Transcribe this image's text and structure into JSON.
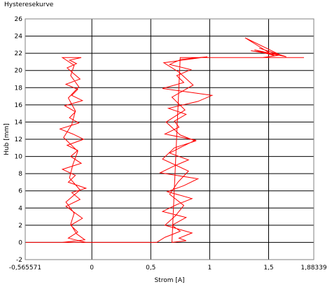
{
  "window": {
    "title": "Hysteresekurve"
  },
  "chart_data": {
    "type": "line",
    "title": "Hysteresekurve",
    "xlabel": "Strom [A]",
    "ylabel": "Hub [mm]",
    "xlim": [
      -0.565571,
      1.88339
    ],
    "ylim": [
      -2,
      26
    ],
    "xticks": [
      -0.565571,
      0,
      0.5,
      1,
      1.5,
      1.88339
    ],
    "xtick_labels": [
      "-0,565571",
      "0",
      "0,5",
      "1",
      "1,5",
      "1,88339"
    ],
    "yticks": [
      -2,
      0,
      2,
      4,
      6,
      8,
      10,
      12,
      14,
      16,
      18,
      20,
      22,
      24,
      26
    ],
    "grid": true,
    "line_color": "#ff0000",
    "series": [
      {
        "x": [
          -0.56,
          -0.05,
          -0.2,
          -0.12,
          -0.18,
          -0.08,
          -0.15,
          -0.22,
          -0.1,
          -0.17,
          -0.05,
          -0.2,
          -0.14,
          -0.25,
          -0.09,
          -0.18,
          -0.12,
          -0.21,
          -0.07,
          -0.16,
          -0.27,
          -0.11,
          -0.19,
          -0.14,
          -0.23,
          -0.08,
          -0.17,
          -0.12,
          -0.22,
          -0.1,
          -0.16,
          -0.21,
          -0.13,
          -0.19,
          -0.09,
          -0.25,
          -0.15,
          -0.18,
          -0.11,
          -0.2,
          -0.14,
          -0.17,
          -0.24,
          -0.12,
          -0.16,
          -0.19,
          -0.1,
          -0.22,
          -0.15,
          -0.18,
          -0.13,
          -0.06,
          -0.25,
          0.4,
          0.55,
          0.62,
          0.75,
          0.68,
          0.8,
          0.6,
          0.72,
          0.85,
          0.64,
          0.78,
          0.9,
          0.58,
          0.7,
          0.82,
          0.66,
          0.76,
          0.88,
          0.62,
          0.74,
          0.7,
          0.8,
          0.65,
          0.9,
          1.02,
          0.6,
          0.78,
          0.72,
          0.84,
          0.66,
          0.76,
          0.98,
          0.61,
          0.74,
          0.86,
          0.68,
          0.79,
          0.63,
          0.75,
          0.88,
          0.7,
          0.6,
          0.82,
          0.73,
          0.66,
          0.78,
          0.71,
          0.62,
          0.85,
          0.74,
          0.8,
          0.68,
          0.75,
          1.2,
          1.8,
          1.45,
          1.6,
          1.3,
          1.5,
          1.55,
          1.38,
          1.65,
          1.42,
          1.58,
          1.35,
          1.62
        ],
        "y": [
          0,
          0,
          0.5,
          1.2,
          2,
          2.8,
          3.5,
          4.2,
          5,
          5.8,
          6.3,
          7,
          7.8,
          8.5,
          9.2,
          10,
          10.7,
          11.3,
          12,
          12.6,
          13.2,
          13.9,
          14.5,
          15.2,
          15.9,
          16.5,
          17.1,
          17.8,
          18.4,
          19,
          19.7,
          20.3,
          20.8,
          21.2,
          21.5,
          21.5,
          20.6,
          19.4,
          18.1,
          16.8,
          15.3,
          13.7,
          12.2,
          10.6,
          9.1,
          7.5,
          6.1,
          4.7,
          3.4,
          2.1,
          1,
          0.3,
          0,
          0,
          0,
          0.6,
          1.3,
          2,
          2.9,
          3.6,
          4.4,
          5.1,
          5.9,
          6.6,
          7.4,
          8.1,
          8.9,
          9.6,
          10.4,
          11.1,
          11.9,
          12.6,
          13.4,
          14.1,
          14.9,
          15.6,
          16.4,
          17.1,
          17.9,
          18.6,
          19.4,
          20.1,
          20.7,
          21.3,
          21.6,
          20.9,
          19.8,
          18.3,
          16.9,
          15.4,
          14,
          12.5,
          11.8,
          11,
          9.7,
          8.3,
          7,
          5.6,
          4.3,
          3.1,
          2,
          1.1,
          0.5,
          0.2,
          0,
          21.5,
          21.5,
          21.5,
          21.5,
          21.8,
          23.8,
          22.1,
          21.7,
          22.4,
          21.6,
          22.6,
          21.9,
          22.3,
          21.7
        ]
      }
    ]
  }
}
